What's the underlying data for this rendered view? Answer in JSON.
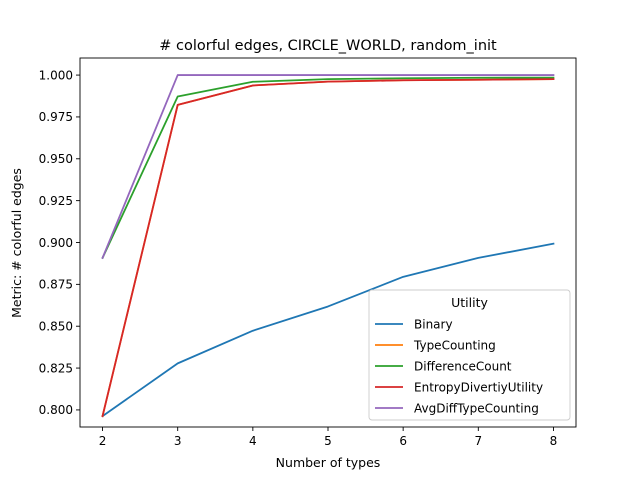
{
  "chart_data": {
    "type": "line",
    "title": "# colorful edges, CIRCLE_WORLD, random_init",
    "xlabel": "Number of types",
    "ylabel": "Metric: # colorful edges",
    "x": [
      2,
      3,
      4,
      5,
      6,
      7,
      8
    ],
    "xlim": [
      1.7,
      8.3
    ],
    "ylim": [
      0.7898,
      1.0102
    ],
    "xticks": [
      "2",
      "3",
      "4",
      "5",
      "6",
      "7",
      "8"
    ],
    "yticks": [
      "0.800",
      "0.825",
      "0.850",
      "0.875",
      "0.900",
      "0.925",
      "0.950",
      "0.975",
      "1.000"
    ],
    "grid": false,
    "legend": {
      "title": "Utility",
      "placement": "lower-right"
    },
    "series": [
      {
        "name": "Binary",
        "color": "#1f77b4",
        "values": [
          0.7963,
          0.8278,
          0.8473,
          0.8618,
          0.8795,
          0.8908,
          0.8993
        ]
      },
      {
        "name": "TypeCounting",
        "color": "#ff7f0e",
        "values": [
          0.7963,
          0.9822,
          0.9938,
          0.9961,
          0.9969,
          0.9972,
          0.9976
        ]
      },
      {
        "name": "DifferenceCount",
        "color": "#2ca02c",
        "values": [
          0.8908,
          0.9872,
          0.996,
          0.9976,
          0.9981,
          0.9984,
          0.9985
        ]
      },
      {
        "name": "EntropyDivertiyUtility",
        "color": "#d62728",
        "values": [
          0.7963,
          0.9822,
          0.9938,
          0.9961,
          0.9969,
          0.9972,
          0.9976
        ]
      },
      {
        "name": "AvgDiffTypeCounting",
        "color": "#9467bd",
        "values": [
          0.8908,
          1.0,
          1.0,
          1.0,
          1.0,
          1.0,
          1.0
        ]
      }
    ]
  }
}
